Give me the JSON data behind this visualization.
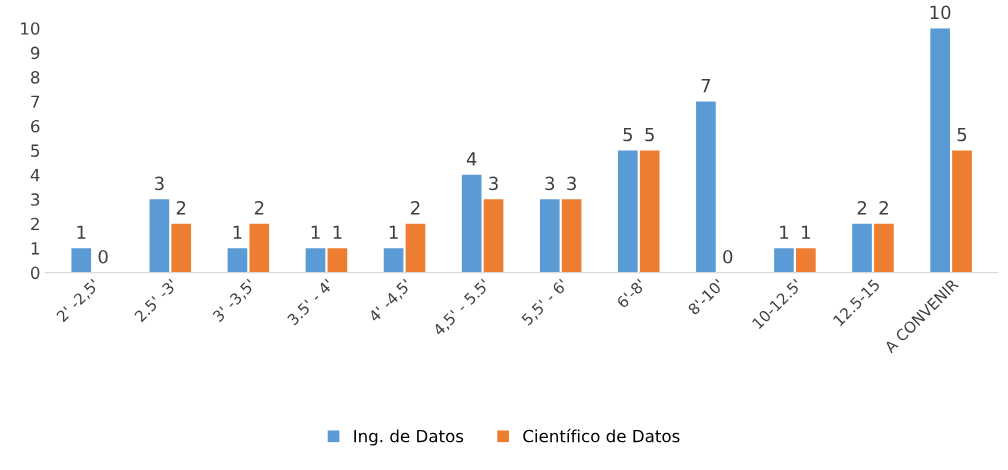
{
  "chart_data": {
    "type": "bar",
    "categories": [
      "2' -2,5'",
      "2.5' -3'",
      "3' -3,5'",
      "3.5' - 4'",
      "4' -4,5'",
      "4,5' - 5.5'",
      "5,5' - 6'",
      "6'-8'",
      "8'-10'",
      "10-12.5'",
      "12.5-15",
      "A CONVENIR"
    ],
    "series": [
      {
        "name": "Ing. de Datos",
        "color": "#5b9bd5",
        "values": [
          1,
          3,
          1,
          1,
          1,
          4,
          3,
          5,
          7,
          1,
          2,
          10
        ]
      },
      {
        "name": "Científico de Datos",
        "color": "#ed7d31",
        "values": [
          0,
          2,
          2,
          1,
          2,
          3,
          3,
          5,
          0,
          1,
          2,
          5
        ]
      }
    ],
    "ylim": [
      0,
      10
    ],
    "yticks": [
      0,
      1,
      2,
      3,
      4,
      5,
      6,
      7,
      8,
      9,
      10
    ],
    "data_labels": true,
    "grid": false,
    "legend": "bottom"
  }
}
